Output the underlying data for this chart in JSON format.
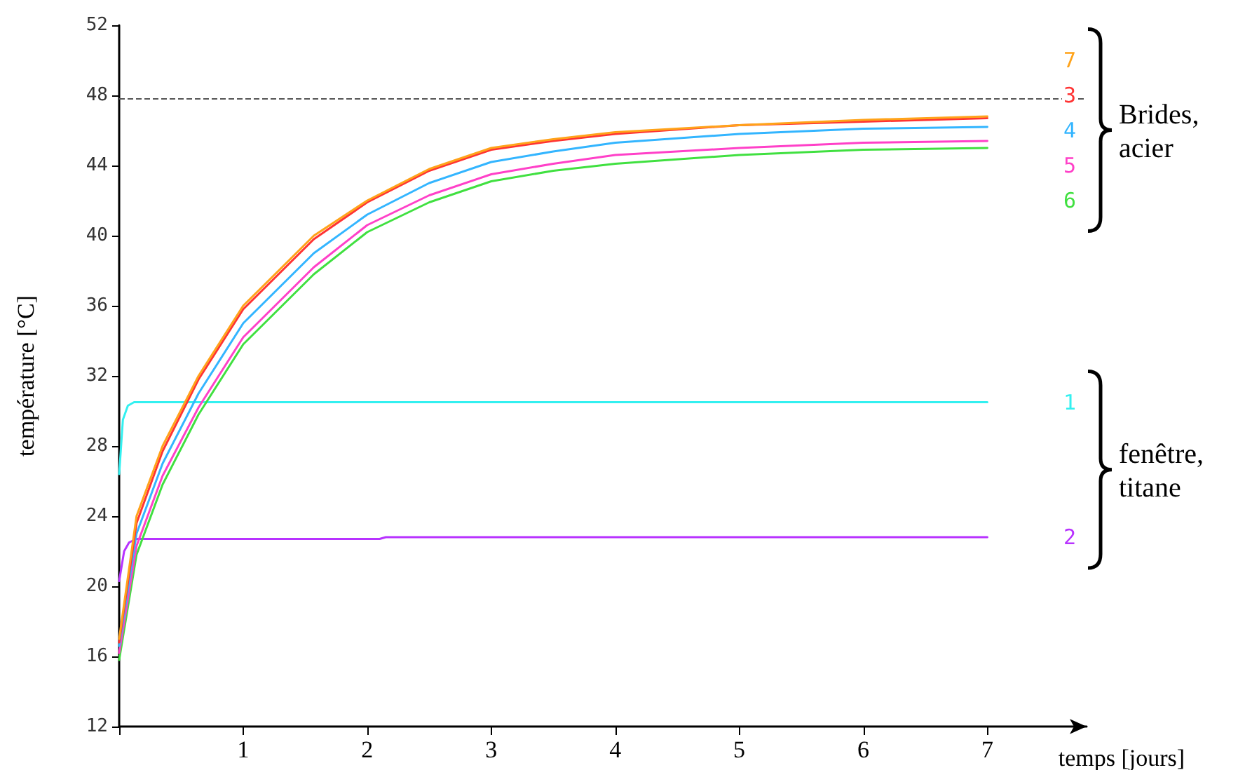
{
  "chart_data": {
    "type": "line",
    "xlabel": "temps [jours]",
    "ylabel": "température [°C]",
    "xlim": [
      0,
      7.8
    ],
    "xticks": [
      {
        "value": 0,
        "label": null
      },
      1,
      2,
      3,
      4,
      5,
      6,
      7
    ],
    "ylim": [
      12,
      52
    ],
    "yticks": [
      12,
      16,
      20,
      24,
      28,
      32,
      36,
      40,
      44,
      48,
      52
    ],
    "grid": false,
    "legend": false,
    "marker": "none",
    "line_style": "solid",
    "ref_lines": [
      {
        "axis": "y",
        "value": 47.8,
        "color": "#555555",
        "line_style": "dashed"
      }
    ],
    "annotations": [
      "Brides, acier",
      "fenêtre, titane"
    ],
    "series": [
      {
        "name": "7",
        "color": "#ffa31a",
        "x": [
          0,
          0.14,
          0.35,
          0.64,
          1.0,
          1.57,
          2,
          2.5,
          3,
          3.5,
          4,
          5,
          6,
          7
        ],
        "values": [
          17,
          24,
          28,
          32,
          36,
          40,
          42,
          43.8,
          45,
          45.5,
          45.9,
          46.3,
          46.6,
          46.8
        ]
      },
      {
        "name": "3",
        "color": "#ff3333",
        "x": [
          0,
          0.14,
          0.35,
          0.64,
          1.0,
          1.57,
          2,
          2.5,
          3,
          3.5,
          4,
          5,
          6,
          7
        ],
        "values": [
          16.8,
          23.6,
          27.7,
          31.8,
          35.8,
          39.8,
          41.9,
          43.7,
          44.9,
          45.4,
          45.8,
          46.3,
          46.5,
          46.7
        ]
      },
      {
        "name": "4",
        "color": "#33b5ff",
        "x": [
          0,
          0.14,
          0.35,
          0.64,
          1.0,
          1.57,
          2,
          2.5,
          3,
          3.5,
          4,
          5,
          6,
          7
        ],
        "values": [
          16.6,
          23,
          27,
          31,
          35,
          39,
          41.2,
          43,
          44.2,
          44.8,
          45.3,
          45.8,
          46.1,
          46.2
        ]
      },
      {
        "name": "5",
        "color": "#ff40c8",
        "x": [
          0,
          0.14,
          0.35,
          0.64,
          1.0,
          1.57,
          2,
          2.5,
          3,
          3.5,
          4,
          5,
          6,
          7
        ],
        "values": [
          16.2,
          22.3,
          26.3,
          30.2,
          34.2,
          38.2,
          40.6,
          42.3,
          43.5,
          44.1,
          44.6,
          45,
          45.3,
          45.4
        ]
      },
      {
        "name": "6",
        "color": "#40e040",
        "x": [
          0,
          0.14,
          0.35,
          0.64,
          1.0,
          1.57,
          2,
          2.5,
          3,
          3.5,
          4,
          5,
          6,
          7
        ],
        "values": [
          15.8,
          21.8,
          25.8,
          29.8,
          33.8,
          37.8,
          40.2,
          41.9,
          43.1,
          43.7,
          44.1,
          44.6,
          44.9,
          45
        ]
      },
      {
        "name": "1",
        "color": "#33f0f0",
        "x": [
          0,
          0.03,
          0.07,
          0.12,
          7
        ],
        "values": [
          26.4,
          29.5,
          30.3,
          30.5,
          30.5
        ]
      },
      {
        "name": "2",
        "color": "#b833ff",
        "x": [
          0,
          0.04,
          0.08,
          0.14,
          2.1,
          2.15,
          7
        ],
        "values": [
          20.3,
          22,
          22.5,
          22.7,
          22.7,
          22.8,
          22.8
        ]
      }
    ]
  }
}
